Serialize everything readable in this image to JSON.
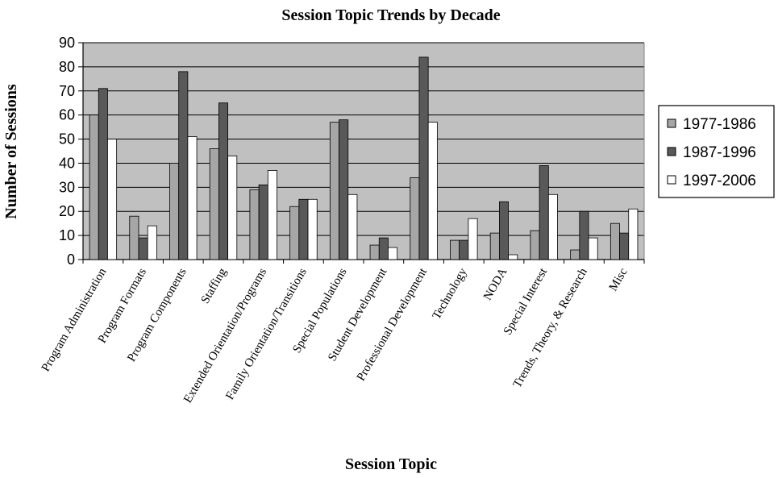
{
  "chart_data": {
    "type": "bar",
    "title": "Session Topic Trends by Decade",
    "xlabel": "Session Topic",
    "ylabel": "Number of Sessions",
    "ylim": [
      0,
      90
    ],
    "yticks": [
      "0",
      "10",
      "20",
      "30",
      "40",
      "50",
      "60",
      "70",
      "80",
      "90"
    ],
    "grid": true,
    "legend_position": "right",
    "categories": [
      "Program Administration",
      "Program Formats",
      "Program Components",
      "Staffing",
      "Extended Orientation/Programs",
      "Family Orientation/Transitions",
      "Special Populations",
      "Student Development",
      "Professional Development",
      "Technology",
      "NODA",
      "Special Interest",
      "Trends, Theory, & Research",
      "Misc"
    ],
    "series": [
      {
        "name": "1977-1986",
        "color": "#a6a6a6",
        "values": [
          60,
          18,
          40,
          46,
          29,
          22,
          57,
          6,
          34,
          8,
          11,
          12,
          4,
          15
        ]
      },
      {
        "name": "1987-1996",
        "color": "#595959",
        "values": [
          71,
          9,
          78,
          65,
          31,
          25,
          58,
          9,
          84,
          8,
          24,
          39,
          20,
          11
        ]
      },
      {
        "name": "1997-2006",
        "color": "#ffffff",
        "values": [
          50,
          14,
          51,
          43,
          37,
          25,
          27,
          5,
          57,
          17,
          2,
          27,
          9,
          21
        ]
      }
    ],
    "colors": {
      "plot_background": "#c0c0c0",
      "gridline": "#000000",
      "bar_outline": "#000000"
    }
  }
}
